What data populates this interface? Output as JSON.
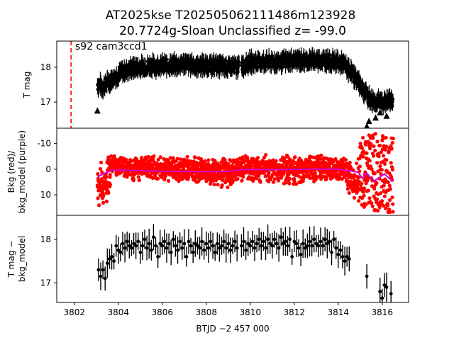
{
  "figure": {
    "title_line1": "AT2025kse  T202505062111486m123928",
    "title_line2": "20.7724g-Sloan Unclassified z= -99.0",
    "annotation": "s92 cam3ccd1",
    "xlabel": "BTJD −2 457 000",
    "marker_line_x": 3801.85
  },
  "chart_data": [
    {
      "type": "scatter",
      "panel": "top",
      "ylabel": "T mag",
      "y_inverted": true,
      "xlim": [
        3801.2,
        3817.2
      ],
      "ylim": [
        18.75,
        16.25
      ],
      "yticks": [
        17,
        18
      ],
      "series": [
        {
          "color": "#000000",
          "marker": "circle-with-errorbars",
          "description_points": [
            [
              3803.1,
              17.5
            ],
            [
              3803.3,
              17.45
            ],
            [
              3803.5,
              17.55
            ],
            [
              3803.7,
              17.65
            ],
            [
              3804.0,
              17.8
            ],
            [
              3804.5,
              17.95
            ],
            [
              3805.0,
              18.0
            ],
            [
              3805.5,
              18.05
            ],
            [
              3806.0,
              18.05
            ],
            [
              3806.5,
              18.05
            ],
            [
              3807.0,
              18.1
            ],
            [
              3807.5,
              18.05
            ],
            [
              3808.0,
              18.05
            ],
            [
              3808.5,
              18.05
            ],
            [
              3809.0,
              18.0
            ],
            [
              3809.5,
              18.0
            ],
            [
              3810.0,
              18.15
            ],
            [
              3810.5,
              18.15
            ],
            [
              3811.0,
              18.15
            ],
            [
              3811.5,
              18.15
            ],
            [
              3812.0,
              18.2
            ],
            [
              3812.5,
              18.2
            ],
            [
              3813.0,
              18.2
            ],
            [
              3813.5,
              18.2
            ],
            [
              3814.0,
              18.15
            ],
            [
              3814.3,
              18.05
            ],
            [
              3814.6,
              17.85
            ],
            [
              3814.9,
              17.6
            ],
            [
              3815.2,
              17.3
            ],
            [
              3815.5,
              17.05
            ],
            [
              3815.8,
              17.0
            ],
            [
              3816.1,
              17.0
            ],
            [
              3816.4,
              17.05
            ]
          ]
        },
        {
          "color": "#000000",
          "marker": "triangle-up",
          "points": [
            [
              3803.05,
              16.75
            ],
            [
              3815.3,
              16.3
            ],
            [
              3815.4,
              16.45
            ],
            [
              3815.7,
              16.55
            ],
            [
              3815.9,
              16.7
            ],
            [
              3816.2,
              16.6
            ]
          ]
        }
      ]
    },
    {
      "type": "scatter",
      "panel": "middle",
      "ylabel": "Bkg (red)/\nbkg_model (purple)",
      "xlim": [
        3801.2,
        3817.2
      ],
      "ylim": [
        -16,
        18
      ],
      "yticks": [
        10,
        0,
        -10
      ],
      "series": [
        {
          "color": "#ff0000",
          "marker": "circle",
          "envelope": [
            [
              3803.05,
              -5,
              15
            ],
            [
              3803.3,
              -3,
              17
            ],
            [
              3803.5,
              -5,
              16
            ],
            [
              3803.7,
              -6,
              2
            ],
            [
              3804.0,
              -6,
              4
            ],
            [
              3805.0,
              -6,
              5
            ],
            [
              3806.0,
              -5,
              5
            ],
            [
              3807.0,
              -5,
              5
            ],
            [
              3808.0,
              -5,
              6
            ],
            [
              3809.0,
              -5,
              9
            ],
            [
              3809.5,
              -6,
              5
            ],
            [
              3810.0,
              -6,
              6
            ],
            [
              3811.0,
              -6,
              6
            ],
            [
              3812.0,
              -6,
              7
            ],
            [
              3813.0,
              -6,
              5
            ],
            [
              3814.0,
              -6,
              5
            ],
            [
              3814.5,
              -4,
              10
            ],
            [
              3814.8,
              -2,
              16
            ],
            [
              3815.0,
              -13,
              16
            ],
            [
              3815.5,
              -15,
              16
            ],
            [
              3816.0,
              -14,
              17
            ],
            [
              3816.5,
              -12,
              17
            ]
          ]
        },
        {
          "color": "#cc00cc",
          "marker": "line",
          "points": [
            [
              3803.05,
              3
            ],
            [
              3803.4,
              1.5
            ],
            [
              3803.7,
              0.5
            ],
            [
              3804.0,
              0.3
            ],
            [
              3805.0,
              0.6
            ],
            [
              3806.0,
              0.8
            ],
            [
              3807.0,
              0.9
            ],
            [
              3808.0,
              1.0
            ],
            [
              3809.0,
              0.9
            ],
            [
              3809.5,
              0.3
            ],
            [
              3810.0,
              0.1
            ],
            [
              3811.0,
              0.2
            ],
            [
              3812.0,
              0.1
            ],
            [
              3813.0,
              -0.1
            ],
            [
              3814.0,
              0.0
            ],
            [
              3814.5,
              0.6
            ],
            [
              3814.9,
              1.2
            ],
            [
              3815.1,
              3.5
            ],
            [
              3815.3,
              1.5
            ],
            [
              3815.6,
              4.8
            ],
            [
              3815.9,
              3.0
            ],
            [
              3816.1,
              1.8
            ],
            [
              3816.3,
              3.5
            ],
            [
              3816.5,
              4.5
            ]
          ]
        }
      ]
    },
    {
      "type": "scatter",
      "panel": "bottom",
      "ylabel": "T mag −\nbkg_model",
      "y_inverted": true,
      "xlim": [
        3801.2,
        3817.2
      ],
      "ylim": [
        18.55,
        16.55
      ],
      "yticks": [
        17,
        18
      ],
      "xticks": [
        3802,
        3804,
        3806,
        3808,
        3810,
        3812,
        3814,
        3816
      ],
      "series": [
        {
          "color": "#000000",
          "marker": "circle-with-errorbars",
          "points": [
            [
              3803.1,
              17.3
            ],
            [
              3803.2,
              17.15
            ],
            [
              3803.3,
              17.3
            ],
            [
              3803.4,
              17.1
            ],
            [
              3803.5,
              17.45
            ],
            [
              3803.6,
              17.55
            ],
            [
              3803.7,
              17.6
            ],
            [
              3803.8,
              17.5
            ],
            [
              3803.9,
              17.85
            ],
            [
              3804.0,
              17.75
            ],
            [
              3804.1,
              17.7
            ],
            [
              3804.2,
              17.9
            ],
            [
              3804.3,
              17.8
            ],
            [
              3804.4,
              17.95
            ],
            [
              3804.5,
              17.85
            ],
            [
              3804.6,
              17.8
            ],
            [
              3804.7,
              17.9
            ],
            [
              3804.8,
              17.85
            ],
            [
              3804.9,
              17.95
            ],
            [
              3805.0,
              17.7
            ],
            [
              3805.1,
              17.85
            ],
            [
              3805.2,
              18.0
            ],
            [
              3805.3,
              17.8
            ],
            [
              3805.4,
              17.9
            ],
            [
              3805.5,
              17.75
            ],
            [
              3805.6,
              18.05
            ],
            [
              3805.7,
              17.85
            ],
            [
              3805.8,
              17.6
            ],
            [
              3805.9,
              17.9
            ],
            [
              3806.0,
              17.85
            ],
            [
              3806.1,
              17.95
            ],
            [
              3806.2,
              17.8
            ],
            [
              3806.3,
              17.9
            ],
            [
              3806.4,
              17.7
            ],
            [
              3806.5,
              18.0
            ],
            [
              3806.6,
              17.85
            ],
            [
              3806.7,
              17.75
            ],
            [
              3806.8,
              17.95
            ],
            [
              3806.9,
              17.8
            ],
            [
              3807.0,
              17.9
            ],
            [
              3807.1,
              17.6
            ],
            [
              3807.2,
              17.95
            ],
            [
              3807.3,
              17.85
            ],
            [
              3807.4,
              17.7
            ],
            [
              3807.5,
              17.9
            ],
            [
              3807.6,
              17.85
            ],
            [
              3807.7,
              17.8
            ],
            [
              3807.8,
              17.95
            ],
            [
              3807.9,
              17.75
            ],
            [
              3808.0,
              17.9
            ],
            [
              3808.1,
              17.8
            ],
            [
              3808.2,
              17.95
            ],
            [
              3808.3,
              17.85
            ],
            [
              3808.4,
              17.7
            ],
            [
              3808.5,
              17.9
            ],
            [
              3808.6,
              17.8
            ],
            [
              3808.7,
              17.85
            ],
            [
              3808.8,
              17.95
            ],
            [
              3808.9,
              17.8
            ],
            [
              3809.0,
              17.9
            ],
            [
              3809.1,
              17.75
            ],
            [
              3809.2,
              17.85
            ],
            [
              3809.3,
              17.95
            ],
            [
              3809.4,
              17.8
            ],
            [
              3809.6,
              17.85
            ],
            [
              3809.7,
              17.95
            ],
            [
              3809.8,
              17.75
            ],
            [
              3809.9,
              17.9
            ],
            [
              3810.0,
              17.85
            ],
            [
              3810.1,
              17.95
            ],
            [
              3810.2,
              17.8
            ],
            [
              3810.3,
              17.9
            ],
            [
              3810.4,
              18.0
            ],
            [
              3810.5,
              17.85
            ],
            [
              3810.6,
              17.95
            ],
            [
              3810.7,
              17.8
            ],
            [
              3810.8,
              18.0
            ],
            [
              3810.9,
              17.9
            ],
            [
              3811.0,
              17.85
            ],
            [
              3811.1,
              18.0
            ],
            [
              3811.2,
              17.9
            ],
            [
              3811.3,
              17.8
            ],
            [
              3811.4,
              18.05
            ],
            [
              3811.5,
              17.9
            ],
            [
              3811.6,
              17.95
            ],
            [
              3811.7,
              17.85
            ],
            [
              3811.8,
              18.0
            ],
            [
              3811.9,
              17.6
            ],
            [
              3812.0,
              17.95
            ],
            [
              3812.1,
              17.9
            ],
            [
              3812.2,
              17.8
            ],
            [
              3812.3,
              17.65
            ],
            [
              3812.4,
              17.9
            ],
            [
              3812.5,
              17.8
            ],
            [
              3812.6,
              17.85
            ],
            [
              3812.7,
              17.95
            ],
            [
              3812.8,
              17.85
            ],
            [
              3812.9,
              18.0
            ],
            [
              3813.0,
              17.9
            ],
            [
              3813.1,
              17.85
            ],
            [
              3813.2,
              17.95
            ],
            [
              3813.3,
              17.85
            ],
            [
              3813.4,
              18.0
            ],
            [
              3813.5,
              17.9
            ],
            [
              3813.6,
              17.95
            ],
            [
              3813.7,
              17.7
            ],
            [
              3813.8,
              18.0
            ],
            [
              3813.9,
              17.8
            ],
            [
              3814.0,
              17.65
            ],
            [
              3814.1,
              17.75
            ],
            [
              3814.2,
              17.6
            ],
            [
              3814.3,
              17.5
            ],
            [
              3814.4,
              17.6
            ],
            [
              3814.5,
              17.55
            ],
            [
              3815.3,
              17.15
            ],
            [
              3815.9,
              16.8
            ],
            [
              3816.0,
              16.65
            ],
            [
              3816.1,
              16.95
            ],
            [
              3816.2,
              16.9
            ],
            [
              3816.4,
              16.75
            ]
          ]
        }
      ]
    }
  ]
}
